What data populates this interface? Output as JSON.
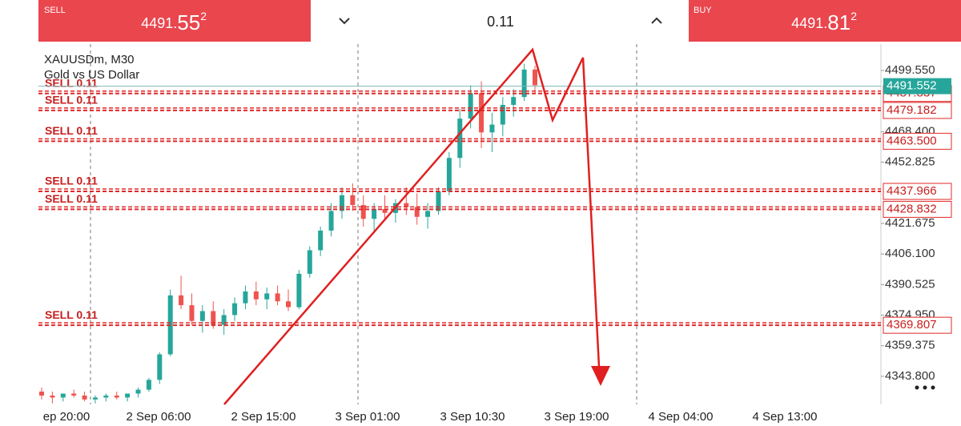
{
  "header": {
    "sell_label": "SELL",
    "sell_price": {
      "small": "4491.",
      "big": "55",
      "sup": "2"
    },
    "lot": "0.11",
    "buy_label": "BUY",
    "buy_price": {
      "small": "4491.",
      "big": "81",
      "sup": "2"
    }
  },
  "chart_data": {
    "type": "candlestick",
    "symbol": "XAUUSDm, M30",
    "description": "Gold vs US Dollar",
    "x_labels": [
      "ep 20:00",
      "2 Sep 06:00",
      "2 Sep 15:00",
      "3 Sep 01:00",
      "3 Sep 10:30",
      "3 Sep 19:00",
      "4 Sep 04:00",
      "4 Sep 13:00"
    ],
    "ylim": [
      4329.5,
      4513
    ],
    "yticks": [
      {
        "value": 4499.55,
        "label": "4499.550"
      },
      {
        "value": 4468.4,
        "label": "4468.400"
      },
      4452.825,
      4421.675,
      {
        "value": 4406.1,
        "label": "4406.100"
      },
      4390.525,
      {
        "value": 4374.95,
        "label": "4374.950"
      },
      4359.375,
      {
        "value": 4343.8,
        "label": "4343.800"
      }
    ],
    "current_price": 4491.552,
    "orders": [
      {
        "price": 4487.837,
        "label": "SELL 0.11"
      },
      {
        "price": 4479.182,
        "label": "SELL 0.11"
      },
      {
        "price": 4463.5,
        "price_label": "4463.500",
        "label": "SELL 0.11"
      },
      {
        "price": 4437.966,
        "label": "SELL 0.11"
      },
      {
        "price": 4428.832,
        "label": "SELL 0.11"
      },
      {
        "price": 4369.807,
        "label": "SELL 0.11"
      }
    ],
    "up_color": "#26a69a",
    "down_color": "#ef5350",
    "candles": [
      [
        4336,
        4338,
        4332,
        4334
      ],
      [
        4334,
        4336,
        4330,
        4333
      ],
      [
        4333,
        4335,
        4331,
        4335
      ],
      [
        4335,
        4337,
        4333,
        4334
      ],
      [
        4334,
        4336,
        4331,
        4332
      ],
      [
        4332,
        4334,
        4330,
        4333
      ],
      [
        4333,
        4335,
        4331,
        4334
      ],
      [
        4334,
        4336,
        4332,
        4333
      ],
      [
        4333,
        4335,
        4331,
        4335
      ],
      [
        4335,
        4338,
        4333,
        4337
      ],
      [
        4337,
        4343,
        4336,
        4342
      ],
      [
        4342,
        4356,
        4340,
        4355
      ],
      [
        4355,
        4388,
        4354,
        4385
      ],
      [
        4385,
        4395,
        4378,
        4380
      ],
      [
        4380,
        4386,
        4370,
        4372
      ],
      [
        4372,
        4380,
        4366,
        4377
      ],
      [
        4377,
        4382,
        4368,
        4370
      ],
      [
        4370,
        4378,
        4365,
        4375
      ],
      [
        4375,
        4384,
        4372,
        4381
      ],
      [
        4381,
        4390,
        4378,
        4387
      ],
      [
        4387,
        4392,
        4380,
        4383
      ],
      [
        4383,
        4389,
        4378,
        4386
      ],
      [
        4386,
        4390,
        4380,
        4382
      ],
      [
        4382,
        4388,
        4377,
        4379
      ],
      [
        4379,
        4398,
        4378,
        4396
      ],
      [
        4396,
        4410,
        4394,
        4408
      ],
      [
        4408,
        4420,
        4405,
        4418
      ],
      [
        4418,
        4432,
        4415,
        4428
      ],
      [
        4428,
        4440,
        4424,
        4436
      ],
      [
        4436,
        4442,
        4428,
        4431
      ],
      [
        4431,
        4436,
        4420,
        4424
      ],
      [
        4424,
        4432,
        4418,
        4429
      ],
      [
        4429,
        4436,
        4424,
        4427
      ],
      [
        4427,
        4434,
        4422,
        4432
      ],
      [
        4432,
        4440,
        4426,
        4430
      ],
      [
        4430,
        4437,
        4421,
        4425
      ],
      [
        4425,
        4432,
        4419,
        4428
      ],
      [
        4428,
        4440,
        4426,
        4438
      ],
      [
        4438,
        4458,
        4436,
        4455
      ],
      [
        4455,
        4480,
        4450,
        4475
      ],
      [
        4475,
        4492,
        4470,
        4488
      ],
      [
        4488,
        4494,
        4460,
        4468
      ],
      [
        4468,
        4478,
        4458,
        4472
      ],
      [
        4472,
        4486,
        4466,
        4482
      ],
      [
        4482,
        4490,
        4476,
        4486
      ],
      [
        4486,
        4503,
        4484,
        4500
      ],
      [
        4500,
        4502,
        4488,
        4492
      ]
    ]
  }
}
